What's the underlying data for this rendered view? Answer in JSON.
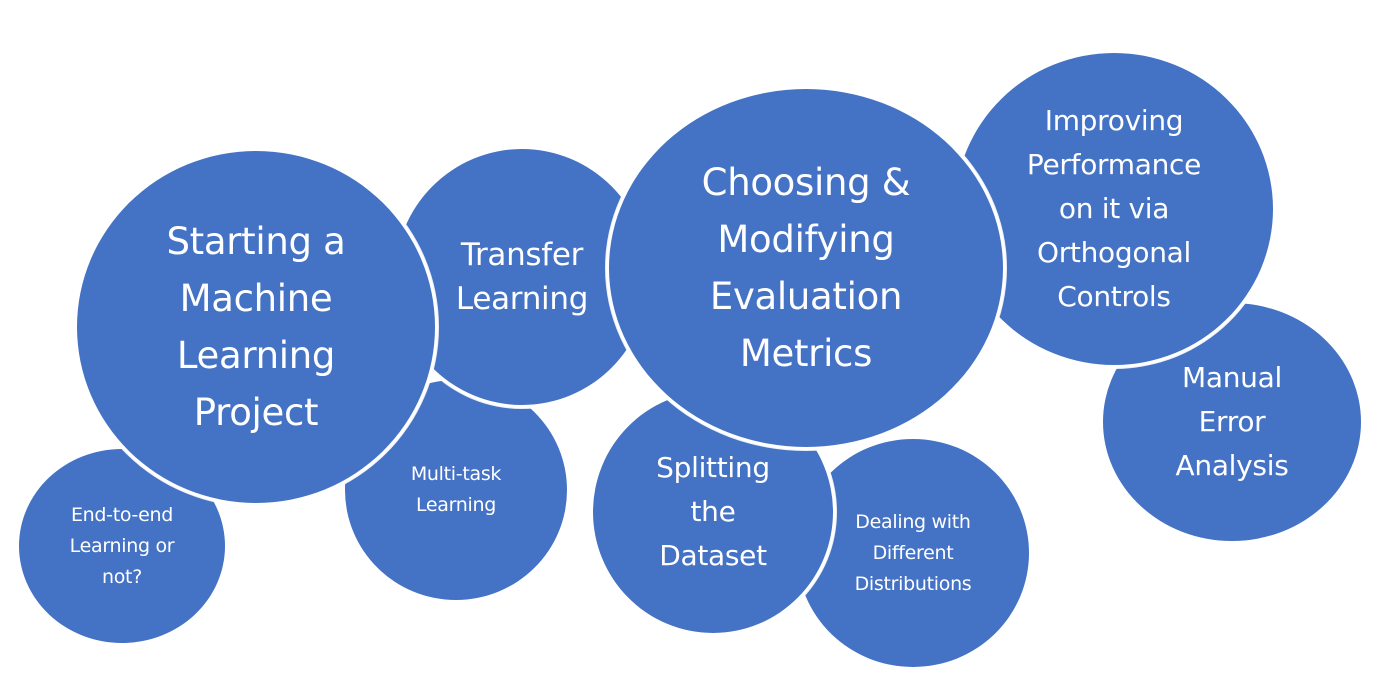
{
  "diagram": {
    "bubble_color": "#4472c4",
    "border_color": "#ffffff",
    "text_color": "#ffffff",
    "topics": {
      "end_to_end": "End-to-end\nLearning or\nnot?",
      "multi_task": "Multi-task\nLearning",
      "starting_project": "Starting a\nMachine\nLearning\nProject",
      "transfer_learning": "Transfer\nLearning",
      "splitting_dataset": "Splitting\nthe\nDataset",
      "dealing_distributions": "Dealing with\nDifferent\nDistributions",
      "evaluation_metrics": "Choosing &\nModifying\nEvaluation\nMetrics",
      "manual_error": "Manual\nError\nAnalysis",
      "improving_performance": "Improving\nPerformance\non it via\nOrthogonal\nControls"
    }
  }
}
